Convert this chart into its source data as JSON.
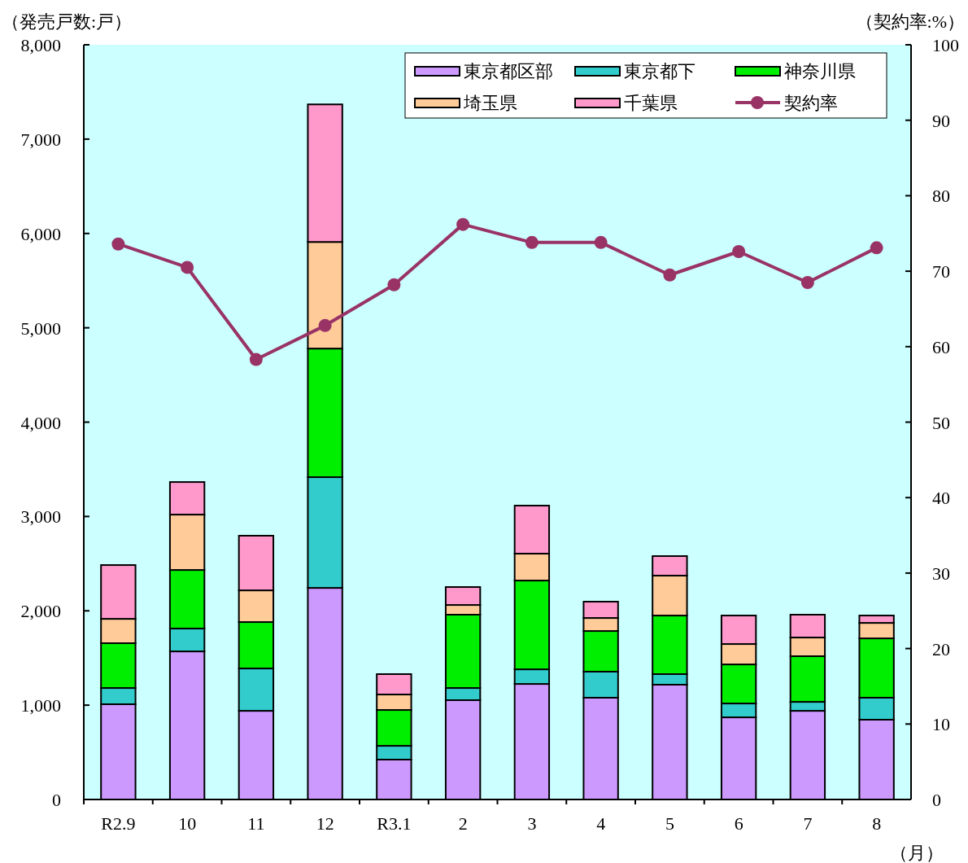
{
  "chart_data": {
    "type": "bar",
    "stacked": true,
    "ylabel": "（発売戸数:戸）",
    "y2label": "（契約率:%）",
    "xlabel": "（月）",
    "categories": [
      "R2.9",
      "10",
      "11",
      "12",
      "R3.1",
      "2",
      "3",
      "4",
      "5",
      "6",
      "7",
      "8"
    ],
    "series": [
      {
        "name": "東京都区部",
        "color": "#cc99ff",
        "values": [
          1010,
          1570,
          940,
          2243,
          423,
          1053,
          1225,
          1079,
          1217,
          871,
          940,
          846
        ]
      },
      {
        "name": "東京都下",
        "color": "#33cccc",
        "values": [
          172,
          242,
          449,
          1174,
          146,
          129,
          155,
          276,
          112,
          147,
          95,
          233
        ]
      },
      {
        "name": "神奈川県",
        "color": "#00ee00",
        "values": [
          475,
          621,
          492,
          1363,
          380,
          777,
          941,
          431,
          621,
          414,
          484,
          629
        ]
      },
      {
        "name": "埼玉県",
        "color": "#ffcc99",
        "values": [
          258,
          587,
          336,
          1130,
          164,
          103,
          285,
          138,
          423,
          216,
          198,
          164
        ]
      },
      {
        "name": "千葉県",
        "color": "#ff99cc",
        "values": [
          570,
          345,
          579,
          1458,
          216,
          190,
          509,
          173,
          207,
          302,
          242,
          78
        ]
      },
      {
        "name": "契約率",
        "type": "line",
        "axis": "y2",
        "color": "#993366",
        "values": [
          73.6,
          70.5,
          58.3,
          62.8,
          68.2,
          76.2,
          73.8,
          73.8,
          69.5,
          72.6,
          68.5,
          73.1
        ]
      }
    ],
    "ylim": [
      0,
      8000
    ],
    "yticks": [
      0,
      {
        "value": 1000,
        "label": "1,000"
      },
      {
        "value": 2000,
        "label": "2,000"
      },
      {
        "value": 3000,
        "label": "3,000"
      },
      {
        "value": 4000,
        "label": "4,000"
      },
      {
        "value": 5000,
        "label": "5,000"
      },
      {
        "value": 6000,
        "label": "6,000"
      },
      {
        "value": 7000,
        "label": "7,000"
      },
      {
        "value": 8000,
        "label": "8,000"
      }
    ],
    "y2lim": [
      0,
      100
    ],
    "y2ticks": [
      0,
      10,
      20,
      30,
      40,
      50,
      60,
      70,
      80,
      90,
      100
    ],
    "grid": false,
    "legend": "top right",
    "marker": "circle",
    "line_style": "solid"
  }
}
